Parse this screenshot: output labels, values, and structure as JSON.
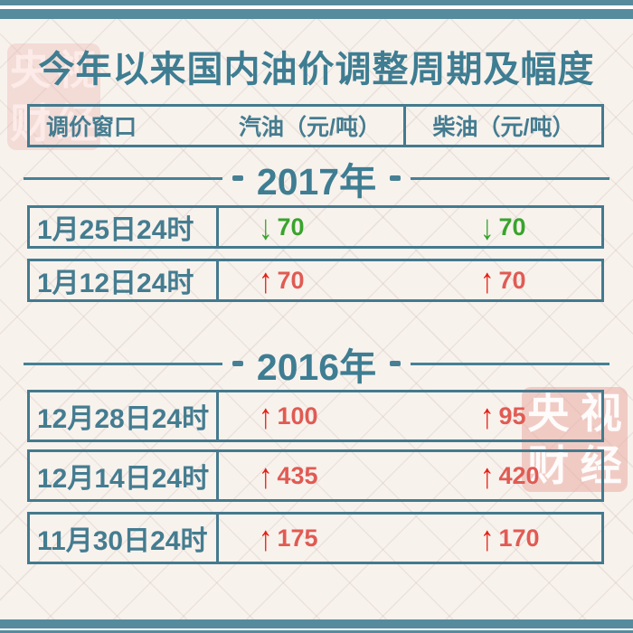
{
  "title": "今年以来国内油价调整周期及幅度",
  "watermark": {
    "text": "央视财经",
    "chars": [
      "央",
      "视",
      "财",
      "经"
    ]
  },
  "table": {
    "headers": [
      "调价窗口",
      "汽油（元/吨）",
      "柴油（元/吨）"
    ]
  },
  "sections": [
    {
      "year": "2017年",
      "rows": [
        {
          "date": "1月25日24时",
          "gasoline": {
            "dir": "down",
            "value": "70"
          },
          "diesel": {
            "dir": "down",
            "value": "70"
          }
        },
        {
          "date": "1月12日24时",
          "gasoline": {
            "dir": "up",
            "value": "70"
          },
          "diesel": {
            "dir": "up",
            "value": "70"
          }
        }
      ]
    },
    {
      "year": "2016年",
      "rows": [
        {
          "date": "12月28日24时",
          "gasoline": {
            "dir": "up",
            "value": "100"
          },
          "diesel": {
            "dir": "up",
            "value": "95"
          }
        },
        {
          "date": "12月14日24时",
          "gasoline": {
            "dir": "up",
            "value": "435"
          },
          "diesel": {
            "dir": "up",
            "value": "420"
          }
        },
        {
          "date": "11月30日24时",
          "gasoline": {
            "dir": "up",
            "value": "175"
          },
          "diesel": {
            "dir": "up",
            "value": "170"
          }
        }
      ]
    }
  ],
  "chart_data": {
    "type": "table",
    "title": "今年以来国内油价调整周期及幅度",
    "columns": [
      "调价窗口",
      "汽油（元/吨）",
      "柴油（元/吨）"
    ],
    "unit": "元/吨",
    "sections": [
      {
        "year": "2017",
        "rows": [
          {
            "window": "1月25日24时",
            "gasoline": -70,
            "diesel": -70
          },
          {
            "window": "1月12日24时",
            "gasoline": 70,
            "diesel": 70
          }
        ]
      },
      {
        "year": "2016",
        "rows": [
          {
            "window": "12月28日24时",
            "gasoline": 100,
            "diesel": 95
          },
          {
            "window": "12月14日24时",
            "gasoline": 435,
            "diesel": 420
          },
          {
            "window": "11月30日24时",
            "gasoline": 175,
            "diesel": 170
          }
        ]
      }
    ]
  },
  "colors": {
    "teal": "#447a8e",
    "title_teal": "#3e7d92",
    "band_teal": "#568b9e",
    "red_arrow": "#e71f14",
    "red_value": "#e05b53",
    "green": "#38a42c",
    "background": "#f8f2ed",
    "watermark_pink": "#eaaca3"
  }
}
